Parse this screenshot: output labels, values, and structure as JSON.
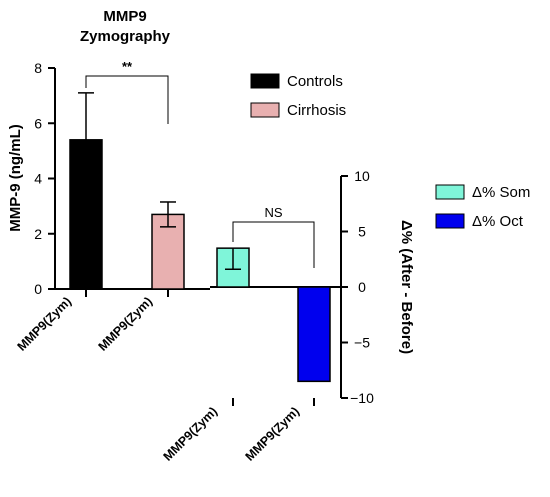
{
  "chart_data": {
    "type": "bar",
    "title": "MMP9 Zymography",
    "title_lines": [
      "MMP9",
      "Zymography"
    ],
    "left_axis": {
      "label": "MMP-9 (ng/mL)",
      "ylim": [
        0,
        8
      ],
      "ticks": [
        "0",
        "2",
        "4",
        "6",
        "8"
      ]
    },
    "right_axis": {
      "label": "Δ% (After - Before)",
      "ylim": [
        -10,
        10
      ],
      "ticks": [
        "10",
        "5",
        "0",
        "−5",
        "−10"
      ]
    },
    "categories": [
      "MMP9(Zym)",
      "MMP9(Zym)",
      "MMP9(Zym)",
      "MMP9(Zym)"
    ],
    "series": [
      {
        "name": "Controls",
        "axis": "left",
        "value": 5.4,
        "error_upper": 7.1,
        "color": "#000000"
      },
      {
        "name": "Cirrhosis",
        "axis": "left",
        "value": 2.7,
        "error_lower": 2.25,
        "error_upper": 3.15,
        "color": "#e8b0b0"
      },
      {
        "name": "Δ% Som",
        "axis": "right",
        "value": 3.5,
        "error_lower": 1.6,
        "color": "#7ff5d9"
      },
      {
        "name": "Δ% Oct",
        "axis": "right",
        "value": -8.5,
        "color": "#0000ee"
      }
    ],
    "annotations": [
      {
        "text": "**",
        "between": [
          "Controls",
          "Cirrhosis"
        ]
      },
      {
        "text": "NS",
        "between": [
          "Δ% Som",
          "Δ% Oct"
        ]
      }
    ],
    "grid": false,
    "legend_placement": "right"
  }
}
